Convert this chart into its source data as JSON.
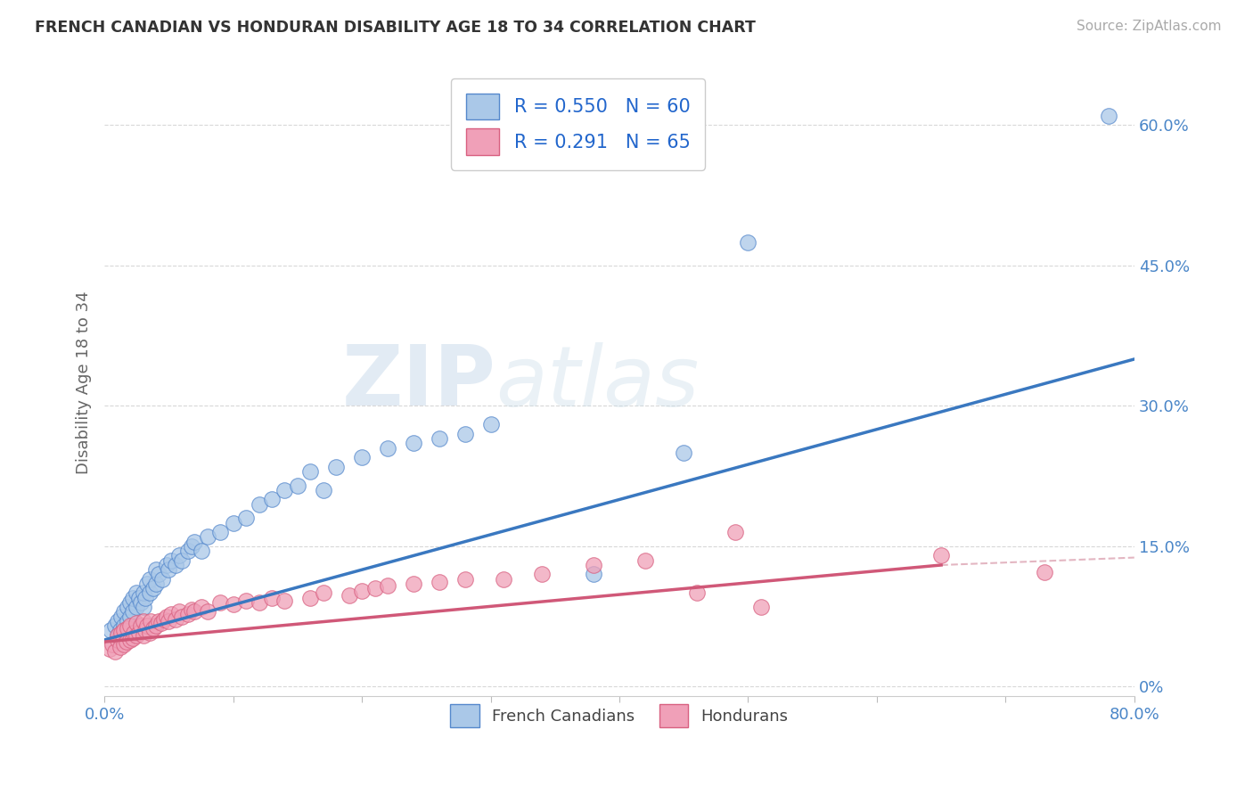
{
  "title": "FRENCH CANADIAN VS HONDURAN DISABILITY AGE 18 TO 34 CORRELATION CHART",
  "source": "Source: ZipAtlas.com",
  "ylabel": "Disability Age 18 to 34",
  "xlim": [
    0,
    0.8
  ],
  "ylim": [
    -0.01,
    0.66
  ],
  "xticks": [
    0.0,
    0.1,
    0.2,
    0.3,
    0.4,
    0.5,
    0.6,
    0.7,
    0.8
  ],
  "yticks_right": [
    0.0,
    0.15,
    0.3,
    0.45,
    0.6
  ],
  "ytick_labels_right": [
    "0%",
    "15.0%",
    "30.0%",
    "45.0%",
    "60.0%"
  ],
  "blue_fill": "#aac8e8",
  "blue_edge": "#5588cc",
  "pink_fill": "#f0a0b8",
  "pink_edge": "#d86080",
  "blue_line_color": "#3a78c0",
  "pink_line_color": "#d05878",
  "pink_dash_color": "#d898a8",
  "R_blue": 0.55,
  "N_blue": 60,
  "R_pink": 0.291,
  "N_pink": 65,
  "watermark_zip": "ZIP",
  "watermark_atlas": "atlas",
  "legend_french": "French Canadians",
  "legend_honduran": "Hondurans",
  "blue_scatter_x": [
    0.005,
    0.008,
    0.01,
    0.01,
    0.012,
    0.013,
    0.015,
    0.015,
    0.018,
    0.018,
    0.02,
    0.02,
    0.022,
    0.022,
    0.025,
    0.025,
    0.027,
    0.028,
    0.03,
    0.03,
    0.032,
    0.033,
    0.035,
    0.035,
    0.038,
    0.04,
    0.04,
    0.042,
    0.045,
    0.048,
    0.05,
    0.052,
    0.055,
    0.058,
    0.06,
    0.065,
    0.068,
    0.07,
    0.075,
    0.08,
    0.09,
    0.1,
    0.11,
    0.12,
    0.13,
    0.14,
    0.15,
    0.16,
    0.17,
    0.18,
    0.2,
    0.22,
    0.24,
    0.26,
    0.28,
    0.3,
    0.38,
    0.45,
    0.5,
    0.78
  ],
  "blue_scatter_y": [
    0.06,
    0.065,
    0.055,
    0.07,
    0.06,
    0.075,
    0.065,
    0.08,
    0.07,
    0.085,
    0.075,
    0.09,
    0.08,
    0.095,
    0.085,
    0.1,
    0.095,
    0.09,
    0.085,
    0.1,
    0.095,
    0.11,
    0.1,
    0.115,
    0.105,
    0.11,
    0.125,
    0.12,
    0.115,
    0.13,
    0.125,
    0.135,
    0.13,
    0.14,
    0.135,
    0.145,
    0.15,
    0.155,
    0.145,
    0.16,
    0.165,
    0.175,
    0.18,
    0.195,
    0.2,
    0.21,
    0.215,
    0.23,
    0.21,
    0.235,
    0.245,
    0.255,
    0.26,
    0.265,
    0.27,
    0.28,
    0.12,
    0.25,
    0.475,
    0.61
  ],
  "pink_scatter_x": [
    0.004,
    0.006,
    0.008,
    0.01,
    0.01,
    0.012,
    0.013,
    0.015,
    0.015,
    0.017,
    0.018,
    0.02,
    0.02,
    0.022,
    0.023,
    0.025,
    0.025,
    0.027,
    0.028,
    0.03,
    0.03,
    0.032,
    0.033,
    0.035,
    0.036,
    0.038,
    0.04,
    0.042,
    0.044,
    0.046,
    0.048,
    0.05,
    0.052,
    0.055,
    0.058,
    0.06,
    0.065,
    0.068,
    0.07,
    0.075,
    0.08,
    0.09,
    0.1,
    0.11,
    0.12,
    0.13,
    0.14,
    0.16,
    0.17,
    0.19,
    0.2,
    0.21,
    0.22,
    0.24,
    0.26,
    0.28,
    0.31,
    0.34,
    0.38,
    0.42,
    0.46,
    0.49,
    0.51,
    0.65,
    0.73
  ],
  "pink_scatter_y": [
    0.04,
    0.045,
    0.038,
    0.05,
    0.055,
    0.042,
    0.058,
    0.045,
    0.06,
    0.048,
    0.062,
    0.05,
    0.065,
    0.052,
    0.058,
    0.055,
    0.068,
    0.058,
    0.065,
    0.055,
    0.07,
    0.06,
    0.065,
    0.058,
    0.07,
    0.062,
    0.065,
    0.07,
    0.068,
    0.072,
    0.075,
    0.07,
    0.078,
    0.072,
    0.08,
    0.075,
    0.078,
    0.082,
    0.08,
    0.085,
    0.08,
    0.09,
    0.088,
    0.092,
    0.09,
    0.095,
    0.092,
    0.095,
    0.1,
    0.098,
    0.102,
    0.105,
    0.108,
    0.11,
    0.112,
    0.115,
    0.115,
    0.12,
    0.13,
    0.135,
    0.1,
    0.165,
    0.085,
    0.14,
    0.122
  ]
}
